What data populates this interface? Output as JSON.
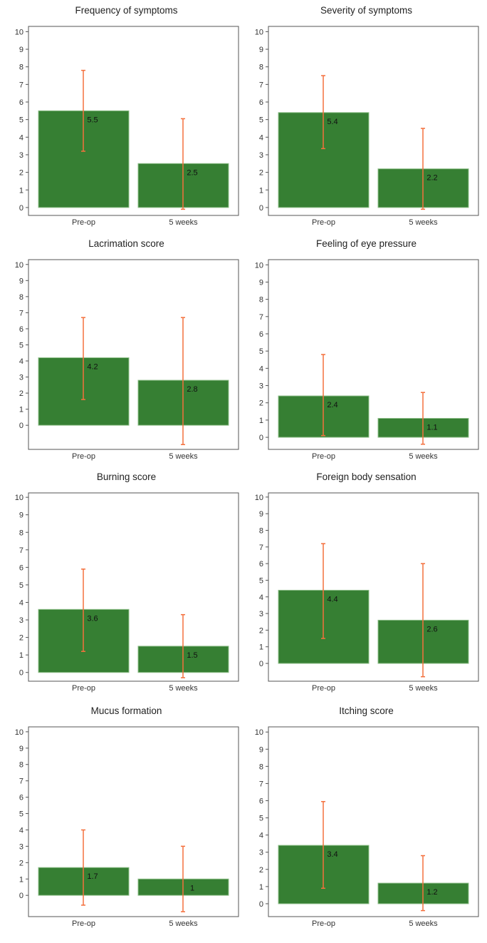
{
  "colors": {
    "bar": "#367f33",
    "bar_edge": "#8fbf8a",
    "error_bar": "#f4703d",
    "frame": "#555555"
  },
  "chart_data": [
    {
      "type": "bar",
      "title": "Frequency of symptoms",
      "categories": [
        "Pre-op",
        "5 weeks"
      ],
      "values": [
        5.5,
        2.5
      ],
      "value_labels": [
        "5.5",
        "2.5"
      ],
      "error_low": [
        3.2,
        -0.1
      ],
      "error_high": [
        7.8,
        5.05
      ],
      "yticks": [
        0,
        1,
        2,
        3,
        4,
        5,
        6,
        7,
        8,
        9,
        10
      ],
      "ylim": [
        -0.45,
        10.3
      ]
    },
    {
      "type": "bar",
      "title": "Severity of symptoms",
      "categories": [
        "Pre-op",
        "5 weeks"
      ],
      "values": [
        5.4,
        2.2
      ],
      "value_labels": [
        "5.4",
        "2.2"
      ],
      "error_low": [
        3.35,
        -0.1
      ],
      "error_high": [
        7.5,
        4.5
      ],
      "yticks": [
        0,
        1,
        2,
        3,
        4,
        5,
        6,
        7,
        8,
        9,
        10
      ],
      "ylim": [
        -0.45,
        10.3
      ]
    },
    {
      "type": "bar",
      "title": "Lacrimation score",
      "categories": [
        "Pre-op",
        "5 weeks"
      ],
      "values": [
        4.2,
        2.8
      ],
      "value_labels": [
        "4.2",
        "2.8"
      ],
      "error_low": [
        1.6,
        -1.2
      ],
      "error_high": [
        6.7,
        6.7
      ],
      "yticks": [
        0,
        1,
        2,
        3,
        4,
        5,
        6,
        7,
        8,
        9,
        10
      ],
      "ylim": [
        -1.5,
        10.3
      ]
    },
    {
      "type": "bar",
      "title": "Feeling of eye pressure",
      "categories": [
        "Pre-op",
        "5 weeks"
      ],
      "values": [
        2.4,
        1.1
      ],
      "value_labels": [
        "2.4",
        "1.1"
      ],
      "error_low": [
        0.1,
        -0.4
      ],
      "error_high": [
        4.8,
        2.6
      ],
      "yticks": [
        0,
        1,
        2,
        3,
        4,
        5,
        6,
        7,
        8,
        9,
        10
      ],
      "ylim": [
        -0.7,
        10.3
      ]
    },
    {
      "type": "bar",
      "title": "Burning score",
      "categories": [
        "Pre-op",
        "5 weeks"
      ],
      "values": [
        3.6,
        1.5
      ],
      "value_labels": [
        "3.6",
        "1.5"
      ],
      "error_low": [
        1.2,
        -0.3
      ],
      "error_high": [
        5.9,
        3.3
      ],
      "yticks": [
        0,
        1,
        2,
        3,
        4,
        5,
        6,
        7,
        8,
        9,
        10
      ],
      "ylim": [
        -0.5,
        10.25
      ]
    },
    {
      "type": "bar",
      "title": "Foreign body sensation",
      "categories": [
        "Pre-op",
        "5 weeks"
      ],
      "values": [
        4.4,
        2.6
      ],
      "value_labels": [
        "4.4",
        "2.6"
      ],
      "error_low": [
        1.5,
        -0.8
      ],
      "error_high": [
        7.2,
        6.0
      ],
      "yticks": [
        0,
        1,
        2,
        3,
        4,
        5,
        6,
        7,
        8,
        9,
        10
      ],
      "ylim": [
        -1.07,
        10.25
      ]
    },
    {
      "type": "bar",
      "title": "Mucus formation",
      "categories": [
        "Pre-op",
        "5 weeks"
      ],
      "values": [
        1.7,
        1.0
      ],
      "value_labels": [
        "1.7",
        "1"
      ],
      "error_low": [
        -0.6,
        -1.0
      ],
      "error_high": [
        4.0,
        3.0
      ],
      "yticks": [
        0,
        1,
        2,
        3,
        4,
        5,
        6,
        7,
        8,
        9,
        10
      ],
      "ylim": [
        -1.3,
        10.3
      ]
    },
    {
      "type": "bar",
      "title": "Itching score",
      "categories": [
        "Pre-op",
        "5 weeks"
      ],
      "values": [
        3.4,
        1.2
      ],
      "value_labels": [
        "3.4",
        "1.2"
      ],
      "error_low": [
        0.9,
        -0.4
      ],
      "error_high": [
        5.95,
        2.8
      ],
      "yticks": [
        0,
        1,
        2,
        3,
        4,
        5,
        6,
        7,
        8,
        9,
        10
      ],
      "ylim": [
        -0.75,
        10.3
      ]
    }
  ]
}
